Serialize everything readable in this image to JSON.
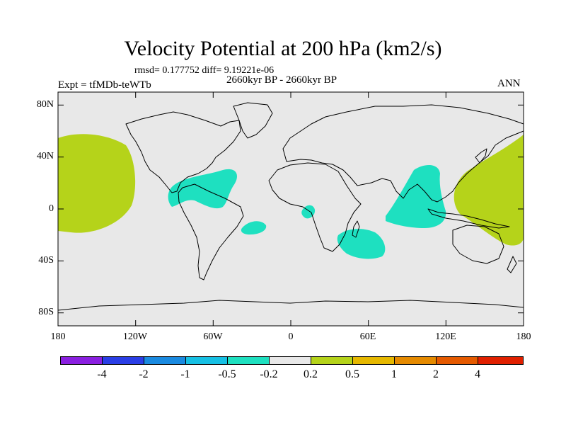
{
  "figure": {
    "title": "Velocity Potential at 200 hPa (km2/s)",
    "stats_line": "rmsd= 0.177752 diff= 9.19221e-06",
    "left_label": "Expt = tfMDb-teWTb",
    "center_label": "2660kyr BP - 2660kyr BP",
    "right_label": "ANN"
  },
  "axes": {
    "x_ticks": [
      "180",
      "120W",
      "60W",
      "0",
      "60E",
      "120E",
      "180"
    ],
    "y_ticks": [
      "80N",
      "40N",
      "0",
      "40S",
      "80S"
    ]
  },
  "colorbar": {
    "labels": [
      "-4",
      "-2",
      "-1",
      "-0.5",
      "-0.2",
      "0.2",
      "0.5",
      "1",
      "2",
      "4"
    ],
    "colors": [
      "#8a1fe0",
      "#2a3ee6",
      "#1a8ae0",
      "#16c0e4",
      "#1ee0c0",
      "#e8e8e8",
      "#b5d31a",
      "#e6b800",
      "#e58a00",
      "#e55a00",
      "#e02000"
    ]
  },
  "map_colors": {
    "background": "#e8e8e8",
    "negative": "#1ee0c0",
    "positive": "#b5d31a"
  },
  "chart_data": {
    "type": "heatmap",
    "title": "Velocity Potential at 200 hPa (km2/s)",
    "projection": "cylindrical equidistant",
    "x_range_deg": [
      -180,
      180
    ],
    "y_range_deg": [
      -90,
      90
    ],
    "contour_levels": [
      -4,
      -2,
      -1,
      -0.5,
      -0.2,
      0.2,
      0.5,
      1,
      2,
      4
    ],
    "field_description": "difference field mostly near zero (-0.2 to 0.2)",
    "positive_regions": [
      {
        "name": "Central Pacific",
        "lon": [
          -180,
          -128
        ],
        "lat": [
          -20,
          55
        ],
        "range": "0.2 to 0.5"
      },
      {
        "name": "Western Pacific",
        "lon": [
          130,
          180
        ],
        "lat": [
          -25,
          55
        ],
        "range": "0.2 to 0.5"
      }
    ],
    "negative_regions": [
      {
        "name": "Caribbean / Northern South America",
        "lon": [
          -93,
          -42
        ],
        "lat": [
          -5,
          30
        ],
        "range": "-0.5 to -0.2"
      },
      {
        "name": "South Atlantic",
        "lon": [
          -40,
          -20
        ],
        "lat": [
          -23,
          -12
        ],
        "range": "-0.5 to -0.2"
      },
      {
        "name": "Gulf of Guinea",
        "lon": [
          8,
          16
        ],
        "lat": [
          -8,
          4
        ],
        "range": "-0.5 to -0.2"
      },
      {
        "name": "Southwest Indian Ocean",
        "lon": [
          40,
          78
        ],
        "lat": [
          -38,
          -15
        ],
        "range": "-0.5 to -0.2"
      },
      {
        "name": "Indian Ocean / South Asia",
        "lon": [
          76,
          125
        ],
        "lat": [
          -15,
          35
        ],
        "range": "-0.5 to -0.2"
      }
    ]
  }
}
